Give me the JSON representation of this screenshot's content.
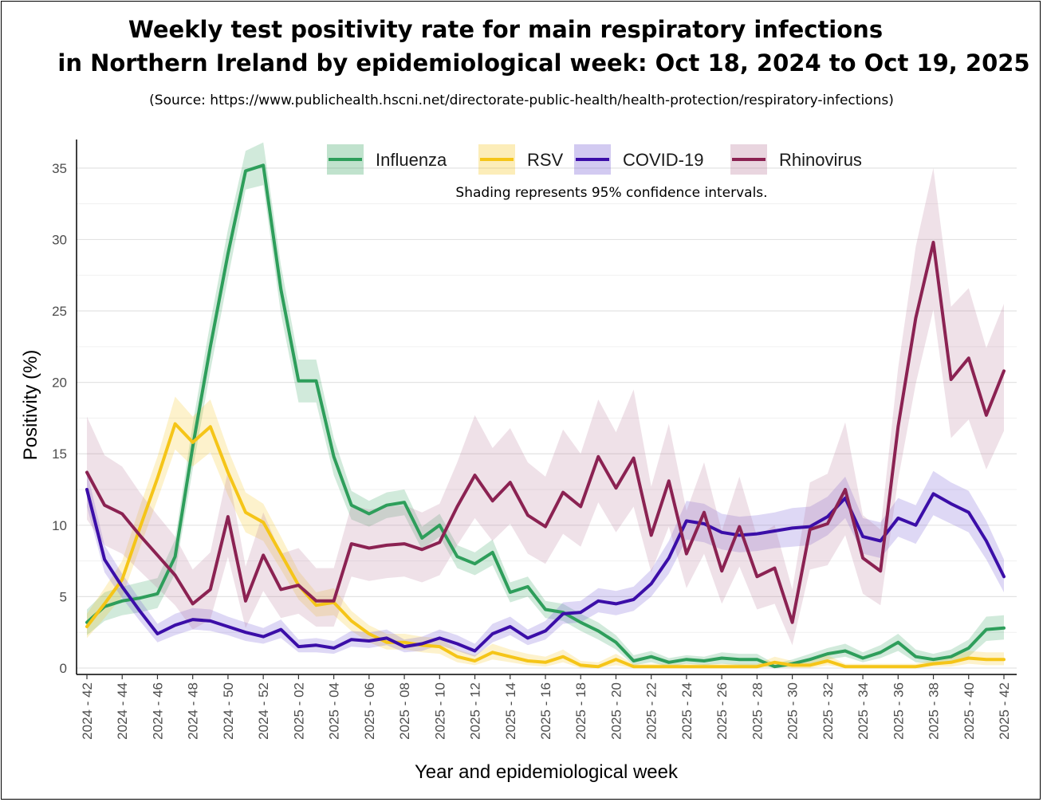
{
  "chart_data": {
    "type": "line",
    "title": "Weekly test positivity rate for main respiratory infections",
    "subtitle": "in Northern Ireland by epidemiological week: Oct 18, 2024 to Oct 19, 2025",
    "source": "(Source: https://www.publichealth.hscni.net/directorate-public-health/health-protection/respiratory-infections)",
    "note": "Shading represents 95% confidence intervals.",
    "xlabel": "Year and epidemiological week",
    "ylabel": "Positivity (%)",
    "ylim": [
      0,
      37
    ],
    "yticks": [
      0,
      5,
      10,
      15,
      20,
      25,
      30,
      35
    ],
    "xtick_labels": [
      "2024 - 42",
      "2024 - 44",
      "2024 - 46",
      "2024 - 48",
      "2024 - 50",
      "2024 - 52",
      "2025 - 02",
      "2025 - 04",
      "2025 - 06",
      "2025 - 08",
      "2025 - 10",
      "2025 - 12",
      "2025 - 14",
      "2025 - 16",
      "2025 - 18",
      "2025 - 20",
      "2025 - 22",
      "2025 - 24",
      "2025 - 26",
      "2025 - 28",
      "2025 - 30",
      "2025 - 32",
      "2025 - 34",
      "2025 - 36",
      "2025 - 38",
      "2025 - 40",
      "2025 - 42"
    ],
    "x": [
      "2024 - 42",
      "2024 - 43",
      "2024 - 44",
      "2024 - 45",
      "2024 - 46",
      "2024 - 47",
      "2024 - 48",
      "2024 - 49",
      "2024 - 50",
      "2024 - 51",
      "2024 - 52",
      "2025 - 01",
      "2025 - 02",
      "2025 - 03",
      "2025 - 04",
      "2025 - 05",
      "2025 - 06",
      "2025 - 07",
      "2025 - 08",
      "2025 - 09",
      "2025 - 10",
      "2025 - 11",
      "2025 - 12",
      "2025 - 13",
      "2025 - 14",
      "2025 - 15",
      "2025 - 16",
      "2025 - 17",
      "2025 - 18",
      "2025 - 19",
      "2025 - 20",
      "2025 - 21",
      "2025 - 22",
      "2025 - 23",
      "2025 - 24",
      "2025 - 25",
      "2025 - 26",
      "2025 - 27",
      "2025 - 28",
      "2025 - 29",
      "2025 - 30",
      "2025 - 31",
      "2025 - 32",
      "2025 - 33",
      "2025 - 34",
      "2025 - 35",
      "2025 - 36",
      "2025 - 37",
      "2025 - 38",
      "2025 - 39",
      "2025 - 40",
      "2025 - 41",
      "2025 - 42"
    ],
    "grid": true,
    "legend_position": "top",
    "series": [
      {
        "name": "Influenza",
        "color": "#2e9e5b",
        "band_color": "#2e9e5b",
        "values": [
          3.2,
          4.3,
          4.7,
          4.9,
          5.2,
          7.8,
          15.5,
          22.5,
          29.0,
          34.8,
          35.2,
          26.5,
          20.1,
          20.1,
          14.8,
          11.4,
          10.8,
          11.4,
          11.6,
          9.1,
          10.0,
          7.8,
          7.3,
          8.1,
          5.3,
          5.7,
          4.1,
          3.9,
          3.2,
          2.6,
          1.8,
          0.5,
          0.8,
          0.4,
          0.6,
          0.5,
          0.7,
          0.6,
          0.6,
          0.1,
          0.3,
          0.6,
          1.0,
          1.2,
          0.7,
          1.1,
          1.8,
          0.8,
          0.6,
          0.8,
          1.4,
          2.7,
          2.8
        ],
        "lower": [
          2.3,
          3.3,
          3.7,
          3.9,
          4.2,
          6.6,
          13.9,
          20.8,
          27.3,
          33.5,
          33.8,
          24.8,
          18.6,
          18.6,
          13.5,
          10.4,
          9.9,
          10.5,
          10.7,
          8.3,
          9.2,
          7.0,
          6.5,
          7.2,
          4.6,
          5.0,
          3.5,
          3.3,
          2.6,
          2.0,
          1.3,
          0.2,
          0.4,
          0.1,
          0.3,
          0.2,
          0.3,
          0.2,
          0.2,
          0.0,
          0.1,
          0.3,
          0.6,
          0.8,
          0.4,
          0.7,
          1.2,
          0.4,
          0.3,
          0.4,
          0.8,
          1.9,
          2.0
        ],
        "upper": [
          4.1,
          5.3,
          5.7,
          6.0,
          6.3,
          9.0,
          17.1,
          24.2,
          30.7,
          36.2,
          36.8,
          28.2,
          21.6,
          21.6,
          16.1,
          12.4,
          11.7,
          12.3,
          12.5,
          9.9,
          10.8,
          8.6,
          8.1,
          9.0,
          6.0,
          6.4,
          4.7,
          4.5,
          3.8,
          3.2,
          2.3,
          0.9,
          1.2,
          0.7,
          0.9,
          0.8,
          1.1,
          1.0,
          1.0,
          0.3,
          0.6,
          1.0,
          1.4,
          1.7,
          1.1,
          1.6,
          2.4,
          1.3,
          1.0,
          1.3,
          2.0,
          3.6,
          3.7
        ]
      },
      {
        "name": "RSV",
        "color": "#f5c518",
        "band_color": "#f5c518",
        "values": [
          2.9,
          4.5,
          6.2,
          9.8,
          13.3,
          17.1,
          15.8,
          16.9,
          13.7,
          10.9,
          10.2,
          8.0,
          5.8,
          4.4,
          4.6,
          3.3,
          2.4,
          1.8,
          1.8,
          1.6,
          1.5,
          0.8,
          0.5,
          1.1,
          0.8,
          0.5,
          0.4,
          0.8,
          0.2,
          0.1,
          0.6,
          0.1,
          0.1,
          0.1,
          0.1,
          0.1,
          0.1,
          0.1,
          0.1,
          0.4,
          0.2,
          0.2,
          0.5,
          0.1,
          0.1,
          0.1,
          0.1,
          0.1,
          0.3,
          0.4,
          0.7,
          0.6,
          0.6
        ],
        "lower": [
          2.1,
          3.5,
          5.0,
          8.4,
          11.8,
          15.3,
          14.1,
          15.1,
          12.1,
          9.5,
          8.9,
          6.9,
          4.8,
          3.6,
          3.7,
          2.6,
          1.8,
          1.3,
          1.3,
          1.1,
          1.0,
          0.4,
          0.2,
          0.6,
          0.4,
          0.2,
          0.1,
          0.4,
          0.0,
          0.0,
          0.2,
          0.0,
          0.0,
          0.0,
          0.0,
          0.0,
          0.0,
          0.0,
          0.0,
          0.1,
          0.0,
          0.0,
          0.2,
          0.0,
          0.0,
          0.0,
          0.0,
          0.0,
          0.1,
          0.1,
          0.3,
          0.2,
          0.2
        ],
        "upper": [
          3.8,
          5.6,
          7.5,
          11.3,
          14.8,
          19.0,
          17.6,
          18.8,
          15.3,
          12.3,
          11.5,
          9.2,
          6.8,
          5.3,
          5.6,
          4.0,
          3.0,
          2.4,
          2.4,
          2.2,
          2.1,
          1.3,
          0.9,
          1.7,
          1.3,
          1.0,
          0.8,
          1.3,
          0.5,
          0.4,
          1.0,
          0.3,
          0.3,
          0.3,
          0.3,
          0.3,
          0.3,
          0.3,
          0.3,
          0.8,
          0.5,
          0.5,
          0.9,
          0.3,
          0.3,
          0.3,
          0.3,
          0.3,
          0.6,
          0.8,
          1.2,
          1.1,
          1.1
        ]
      },
      {
        "name": "COVID-19",
        "color": "#3b0ea8",
        "band_color": "#6a4fd0",
        "values": [
          12.5,
          7.6,
          5.7,
          4.0,
          2.4,
          3.0,
          3.4,
          3.3,
          2.9,
          2.5,
          2.2,
          2.7,
          1.5,
          1.6,
          1.4,
          2.0,
          1.9,
          2.1,
          1.5,
          1.7,
          2.1,
          1.7,
          1.2,
          2.4,
          2.9,
          2.1,
          2.6,
          3.8,
          3.9,
          4.7,
          4.5,
          4.8,
          5.9,
          7.7,
          10.3,
          10.1,
          9.5,
          9.3,
          9.4,
          9.6,
          9.8,
          9.9,
          10.6,
          11.9,
          9.2,
          8.9,
          10.5,
          10.0,
          12.2,
          11.5,
          10.9,
          8.9,
          6.4
        ],
        "lower": [
          11.3,
          6.7,
          4.9,
          3.3,
          1.8,
          2.3,
          2.7,
          2.6,
          2.3,
          1.9,
          1.7,
          2.1,
          1.1,
          1.1,
          1.0,
          1.5,
          1.4,
          1.6,
          1.1,
          1.2,
          1.6,
          1.2,
          0.8,
          1.8,
          2.3,
          1.6,
          2.0,
          3.1,
          3.2,
          3.9,
          3.7,
          4.0,
          5.0,
          6.6,
          9.0,
          8.8,
          8.3,
          8.1,
          8.2,
          8.4,
          8.5,
          8.6,
          9.3,
          10.5,
          8.0,
          7.7,
          9.2,
          8.7,
          10.7,
          10.1,
          9.5,
          7.6,
          5.3
        ],
        "upper": [
          13.8,
          8.6,
          6.6,
          4.8,
          3.1,
          3.8,
          4.2,
          4.1,
          3.6,
          3.2,
          2.8,
          3.4,
          2.0,
          2.1,
          1.9,
          2.6,
          2.5,
          2.7,
          2.0,
          2.2,
          2.7,
          2.3,
          1.7,
          3.1,
          3.6,
          2.7,
          3.3,
          4.6,
          4.7,
          5.6,
          5.4,
          5.7,
          6.9,
          8.9,
          11.7,
          11.5,
          10.8,
          10.6,
          10.7,
          10.9,
          11.2,
          11.3,
          12.0,
          13.4,
          10.5,
          10.2,
          11.9,
          11.4,
          13.8,
          13.0,
          12.4,
          10.3,
          7.6
        ]
      },
      {
        "name": "Rhinovirus",
        "color": "#8b2252",
        "band_color": "#b57595",
        "values": [
          13.7,
          11.4,
          10.8,
          9.3,
          7.9,
          6.5,
          4.5,
          5.5,
          10.6,
          4.7,
          7.9,
          5.5,
          5.8,
          4.7,
          4.7,
          8.7,
          8.4,
          8.6,
          8.7,
          8.3,
          8.8,
          11.3,
          13.5,
          11.7,
          13.0,
          10.7,
          9.9,
          12.3,
          11.3,
          14.8,
          12.6,
          14.7,
          9.3,
          13.1,
          8.0,
          10.9,
          6.8,
          9.9,
          6.4,
          7.0,
          3.2,
          9.7,
          10.1,
          12.5,
          7.7,
          6.8,
          16.9,
          24.5,
          29.8,
          20.2,
          21.7,
          17.7,
          20.8
        ],
        "lower": [
          10.4,
          8.6,
          8.0,
          6.8,
          5.6,
          4.4,
          2.7,
          3.4,
          7.8,
          2.8,
          5.4,
          3.5,
          3.8,
          2.9,
          2.9,
          6.4,
          6.1,
          6.3,
          6.4,
          6.0,
          6.5,
          8.6,
          10.5,
          8.9,
          10.1,
          8.0,
          7.3,
          9.4,
          8.5,
          11.6,
          9.5,
          11.3,
          6.7,
          9.9,
          5.6,
          8.0,
          4.5,
          7.1,
          4.1,
          4.5,
          1.6,
          6.9,
          7.2,
          9.3,
          5.2,
          4.4,
          13.2,
          19.9,
          25.1,
          16.1,
          17.4,
          13.9,
          16.6
        ],
        "upper": [
          17.6,
          14.9,
          14.1,
          12.3,
          10.7,
          9.2,
          6.9,
          8.1,
          13.8,
          7.1,
          10.9,
          8.0,
          8.4,
          7.0,
          7.0,
          11.4,
          11.1,
          11.3,
          11.4,
          10.9,
          11.5,
          14.4,
          17.7,
          15.4,
          16.8,
          14.4,
          13.4,
          16.7,
          15.0,
          18.8,
          16.5,
          19.5,
          12.7,
          17.1,
          11.0,
          14.4,
          9.6,
          13.4,
          9.2,
          10.0,
          5.5,
          13.0,
          13.6,
          17.2,
          10.7,
          9.7,
          21.0,
          29.5,
          35.0,
          25.3,
          26.6,
          22.4,
          25.5
        ]
      }
    ]
  }
}
